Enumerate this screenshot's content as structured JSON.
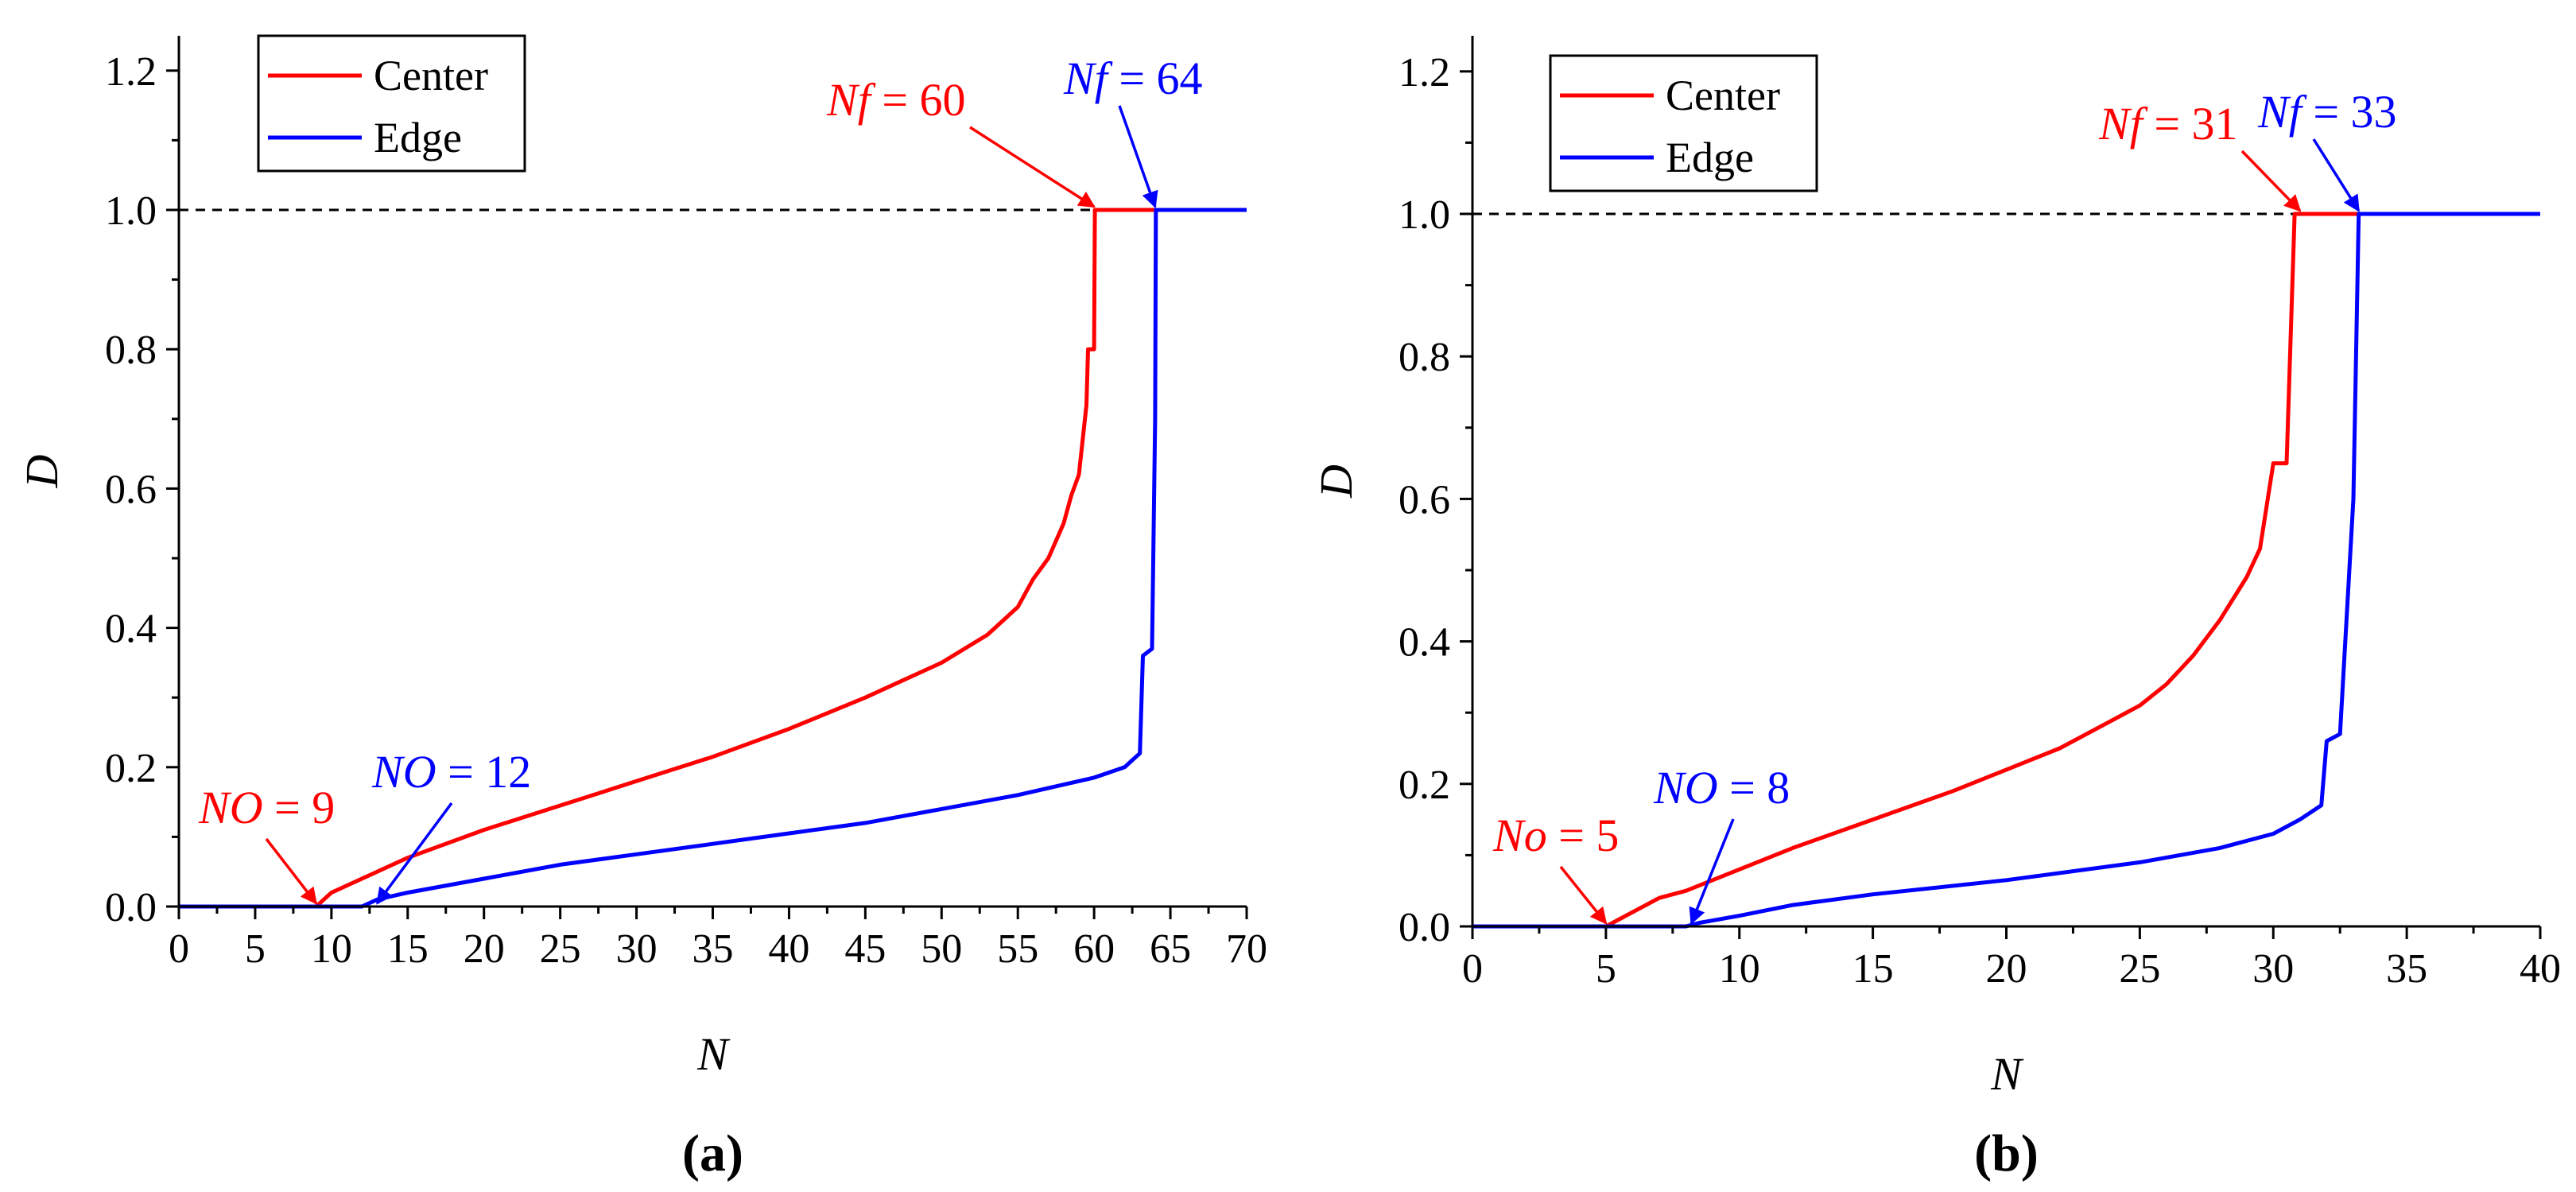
{
  "colors": {
    "center": "#ff0000",
    "edge": "#0000ff",
    "axis": "#000000",
    "reference": "#000000"
  },
  "chart_data": [
    {
      "type": "line",
      "panel_label": "(a)",
      "xlabel": "N",
      "ylabel": "D",
      "xlim": [
        0,
        70
      ],
      "ylim": [
        0,
        1.25
      ],
      "xticks": [
        "0",
        "5",
        "10",
        "15",
        "20",
        "25",
        "30",
        "35",
        "40",
        "45",
        "50",
        "55",
        "60",
        "65",
        "70"
      ],
      "yticks": [
        "0.0",
        "0.2",
        "0.4",
        "0.6",
        "0.8",
        "1.0",
        "1.2"
      ],
      "reference_line": {
        "y": 1.0,
        "style": "dashed"
      },
      "legend": {
        "position": "top-left",
        "entries": [
          "Center",
          "Edge"
        ]
      },
      "series": [
        {
          "name": "Center",
          "points": [
            [
              0,
              0
            ],
            [
              9,
              0
            ],
            [
              9.5,
              0.01
            ],
            [
              10,
              0.02
            ],
            [
              12,
              0.04
            ],
            [
              15,
              0.07
            ],
            [
              20,
              0.11
            ],
            [
              25,
              0.145
            ],
            [
              30,
              0.18
            ],
            [
              35,
              0.215
            ],
            [
              40,
              0.255
            ],
            [
              45,
              0.3
            ],
            [
              50,
              0.35
            ],
            [
              53,
              0.39
            ],
            [
              55,
              0.43
            ],
            [
              56,
              0.47
            ],
            [
              57,
              0.5
            ],
            [
              58,
              0.55
            ],
            [
              58.5,
              0.59
            ],
            [
              59,
              0.62
            ],
            [
              59.5,
              0.72
            ],
            [
              59.6,
              0.8
            ],
            [
              60,
              0.8
            ],
            [
              60.05,
              1.0
            ],
            [
              64,
              1.0
            ],
            [
              70,
              1.0
            ]
          ]
        },
        {
          "name": "Edge",
          "points": [
            [
              0,
              0
            ],
            [
              12,
              0
            ],
            [
              12.5,
              0.005
            ],
            [
              13,
              0.01
            ],
            [
              15,
              0.02
            ],
            [
              20,
              0.04
            ],
            [
              25,
              0.06
            ],
            [
              30,
              0.075
            ],
            [
              35,
              0.09
            ],
            [
              40,
              0.105
            ],
            [
              45,
              0.12
            ],
            [
              50,
              0.14
            ],
            [
              55,
              0.16
            ],
            [
              60,
              0.185
            ],
            [
              62,
              0.2
            ],
            [
              62.5,
              0.21
            ],
            [
              63,
              0.22
            ],
            [
              63.2,
              0.36
            ],
            [
              63.8,
              0.37
            ],
            [
              64,
              0.7
            ],
            [
              64.05,
              1.0
            ],
            [
              70,
              1.0
            ]
          ]
        }
      ],
      "annotations": [
        {
          "series": "Center",
          "prefix": "N",
          "sub": "f",
          "value": " = 60",
          "target": [
            60,
            1.0
          ]
        },
        {
          "series": "Edge",
          "prefix": "N",
          "sub": "f",
          "value": " = 64",
          "target": [
            64,
            1.0
          ]
        },
        {
          "series": "Center",
          "prefix": "N",
          "sub": "O",
          "value": " = 9",
          "target": [
            9,
            0.0
          ]
        },
        {
          "series": "Edge",
          "prefix": "N",
          "sub": "O",
          "value": " = 12",
          "target": [
            13,
            0.0
          ]
        }
      ]
    },
    {
      "type": "line",
      "panel_label": "(b)",
      "xlabel": "N",
      "ylabel": "D",
      "xlim": [
        0,
        40
      ],
      "ylim": [
        0,
        1.25
      ],
      "xticks": [
        "0",
        "5",
        "10",
        "15",
        "20",
        "25",
        "30",
        "35",
        "40"
      ],
      "yticks": [
        "0.0",
        "0.2",
        "0.4",
        "0.6",
        "0.8",
        "1.0",
        "1.2"
      ],
      "reference_line": {
        "y": 1.0,
        "style": "dashed"
      },
      "legend": {
        "position": "top-left",
        "entries": [
          "Center",
          "Edge"
        ]
      },
      "series": [
        {
          "name": "Center",
          "points": [
            [
              0,
              0
            ],
            [
              5,
              0
            ],
            [
              5.5,
              0.01
            ],
            [
              6,
              0.02
            ],
            [
              7,
              0.04
            ],
            [
              8,
              0.05
            ],
            [
              10,
              0.08
            ],
            [
              12,
              0.11
            ],
            [
              15,
              0.15
            ],
            [
              18,
              0.19
            ],
            [
              20,
              0.22
            ],
            [
              22,
              0.25
            ],
            [
              24,
              0.29
            ],
            [
              25,
              0.31
            ],
            [
              26,
              0.34
            ],
            [
              27,
              0.38
            ],
            [
              28,
              0.43
            ],
            [
              29,
              0.49
            ],
            [
              29.5,
              0.53
            ],
            [
              30,
              0.65
            ],
            [
              30.5,
              0.65
            ],
            [
              30.8,
              1.0
            ],
            [
              33,
              1.0
            ],
            [
              40,
              1.0
            ]
          ]
        },
        {
          "name": "Edge",
          "points": [
            [
              0,
              0
            ],
            [
              8,
              0
            ],
            [
              8.5,
              0.005
            ],
            [
              10,
              0.015
            ],
            [
              12,
              0.03
            ],
            [
              15,
              0.045
            ],
            [
              20,
              0.065
            ],
            [
              25,
              0.09
            ],
            [
              28,
              0.11
            ],
            [
              30,
              0.13
            ],
            [
              31,
              0.15
            ],
            [
              31.8,
              0.17
            ],
            [
              32,
              0.26
            ],
            [
              32.5,
              0.27
            ],
            [
              33,
              0.6
            ],
            [
              33.2,
              1.0
            ],
            [
              40,
              1.0
            ]
          ]
        }
      ],
      "annotations": [
        {
          "series": "Center",
          "prefix": "N",
          "sub": "f",
          "value": " = 31",
          "target": [
            31,
            1.0
          ]
        },
        {
          "series": "Edge",
          "prefix": "N",
          "sub": "f",
          "value": " = 33",
          "target": [
            33.2,
            1.0
          ]
        },
        {
          "series": "Center",
          "prefix": "N",
          "sub": "o",
          "value": " = 5",
          "target": [
            5,
            0.0
          ]
        },
        {
          "series": "Edge",
          "prefix": "N",
          "sub": "O",
          "value": " = 8",
          "target": [
            8.2,
            0.0
          ]
        }
      ]
    }
  ]
}
